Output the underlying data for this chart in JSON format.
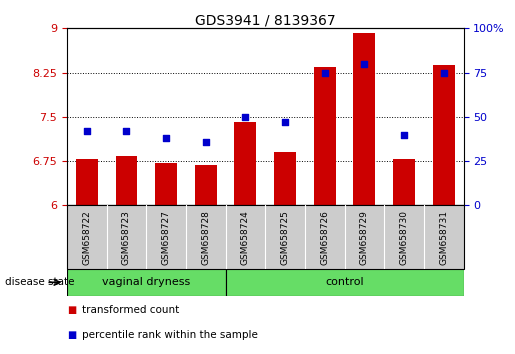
{
  "title": "GDS3941 / 8139367",
  "samples": [
    "GSM658722",
    "GSM658723",
    "GSM658727",
    "GSM658728",
    "GSM658724",
    "GSM658725",
    "GSM658726",
    "GSM658729",
    "GSM658730",
    "GSM658731"
  ],
  "bar_values": [
    6.78,
    6.84,
    6.72,
    6.68,
    7.42,
    6.9,
    8.35,
    8.92,
    6.78,
    8.38
  ],
  "dot_values": [
    42,
    42,
    38,
    36,
    50,
    47,
    75,
    80,
    40,
    75
  ],
  "groups": [
    {
      "label": "vaginal dryness",
      "start": 0,
      "end": 4
    },
    {
      "label": "control",
      "start": 4,
      "end": 10
    }
  ],
  "ylim_left": [
    6,
    9
  ],
  "ylim_right": [
    0,
    100
  ],
  "yticks_left": [
    6,
    6.75,
    7.5,
    8.25,
    9
  ],
  "ytick_labels_left": [
    "6",
    "6.75",
    "7.5",
    "8.25",
    "9"
  ],
  "yticks_right": [
    0,
    25,
    50,
    75,
    100
  ],
  "ytick_labels_right": [
    "0",
    "25",
    "50",
    "75",
    "100%"
  ],
  "bar_color": "#cc0000",
  "dot_color": "#0000cc",
  "group_bg_color": "#66dd66",
  "tick_label_area_bg": "#cccccc",
  "grid_color": "#000000",
  "bar_width": 0.55,
  "disease_state_label": "disease state",
  "legend_bar_label": "transformed count",
  "legend_dot_label": "percentile rank within the sample",
  "left_tick_color": "#cc0000",
  "right_tick_color": "#0000cc"
}
